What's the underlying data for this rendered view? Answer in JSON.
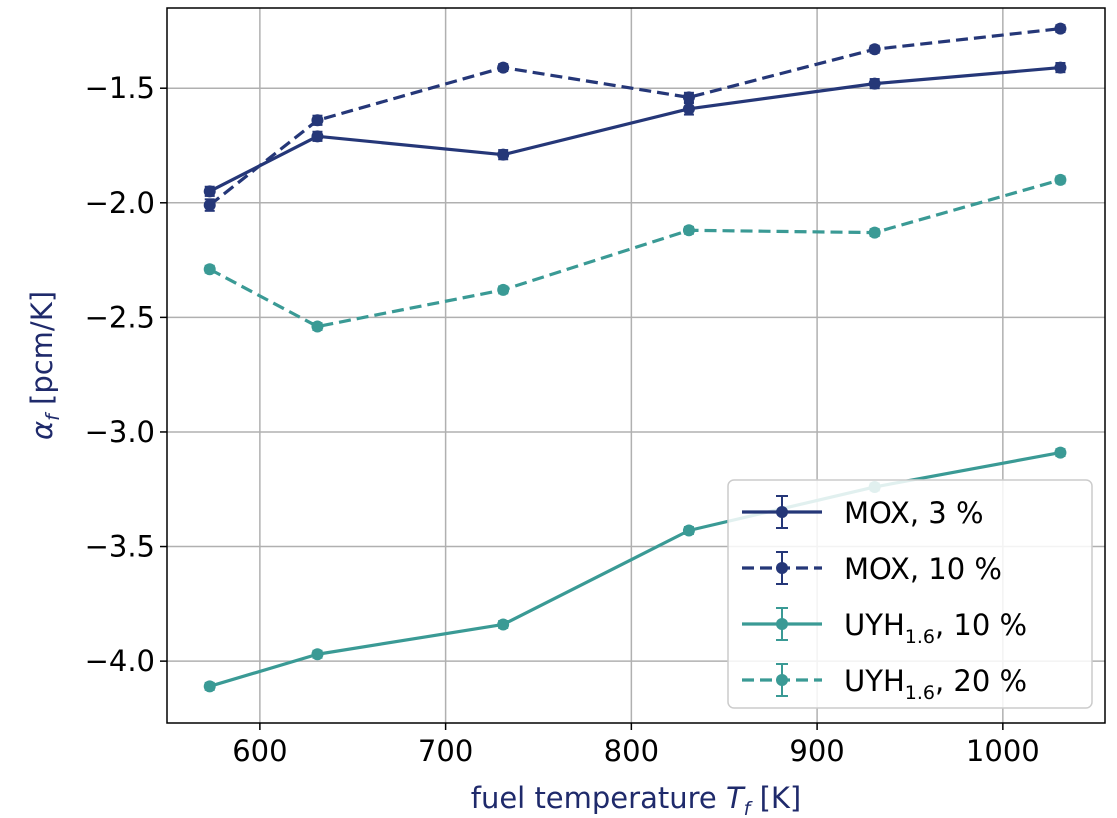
{
  "chart_data": {
    "type": "line",
    "xlabel": {
      "prefix": "fuel temperature ",
      "symbol": "T",
      "subscript": "f",
      "suffix": " [K]"
    },
    "ylabel": {
      "symbol": "α",
      "subscript": "f",
      "suffix": " [pcm/K]"
    },
    "xlim": [
      550,
      1055
    ],
    "ylim": [
      -4.27,
      -1.15
    ],
    "x_ticks": [
      600,
      700,
      800,
      900,
      1000
    ],
    "x_tick_labels": [
      "600",
      "700",
      "800",
      "900",
      "1000"
    ],
    "y_ticks": [
      -1.5,
      -2.0,
      -2.5,
      -3.0,
      -3.5,
      -4.0
    ],
    "y_tick_labels": [
      "−1.5",
      "−2.0",
      "−2.5",
      "−3.0",
      "−3.5",
      "−4.0"
    ],
    "grid": true,
    "legend_position": "lower-right",
    "x": [
      573,
      631,
      731,
      831,
      931,
      1031
    ],
    "series": [
      {
        "name": "MOX, 3 %",
        "label_main": "MOX, 3 %",
        "label_sub": "",
        "label_tail": "",
        "color": "#253778",
        "dash": "solid",
        "values": [
          -1.95,
          -1.71,
          -1.79,
          -1.59,
          -1.48,
          -1.41
        ],
        "errors": [
          0.02,
          0.02,
          0.02,
          0.025,
          0.02,
          0.02
        ]
      },
      {
        "name": "MOX, 10 %",
        "label_main": "MOX, 10 %",
        "label_sub": "",
        "label_tail": "",
        "color": "#253778",
        "dash": "dashed",
        "values": [
          -2.01,
          -1.64,
          -1.41,
          -1.54,
          -1.33,
          -1.24
        ],
        "errors": [
          0.025,
          0.02,
          0.015,
          0.02,
          0.015,
          0.015
        ]
      },
      {
        "name": "UYH1.6, 10 %",
        "label_main": "UYH",
        "label_sub": "1.6",
        "label_tail": ", 10 %",
        "color": "#3a9a95",
        "dash": "solid",
        "values": [
          -4.11,
          -3.97,
          -3.84,
          -3.43,
          -3.24,
          -3.09
        ],
        "errors": [
          0.015,
          0.015,
          0.015,
          0.015,
          0.015,
          0.015
        ]
      },
      {
        "name": "UYH1.6, 20 %",
        "label_main": "UYH",
        "label_sub": "1.6",
        "label_tail": ", 20 %",
        "color": "#3a9a95",
        "dash": "dashed",
        "values": [
          -2.29,
          -2.54,
          -2.38,
          -2.12,
          -2.13,
          -1.9
        ],
        "errors": [
          0.015,
          0.015,
          0.015,
          0.015,
          0.015,
          0.015
        ]
      }
    ]
  }
}
